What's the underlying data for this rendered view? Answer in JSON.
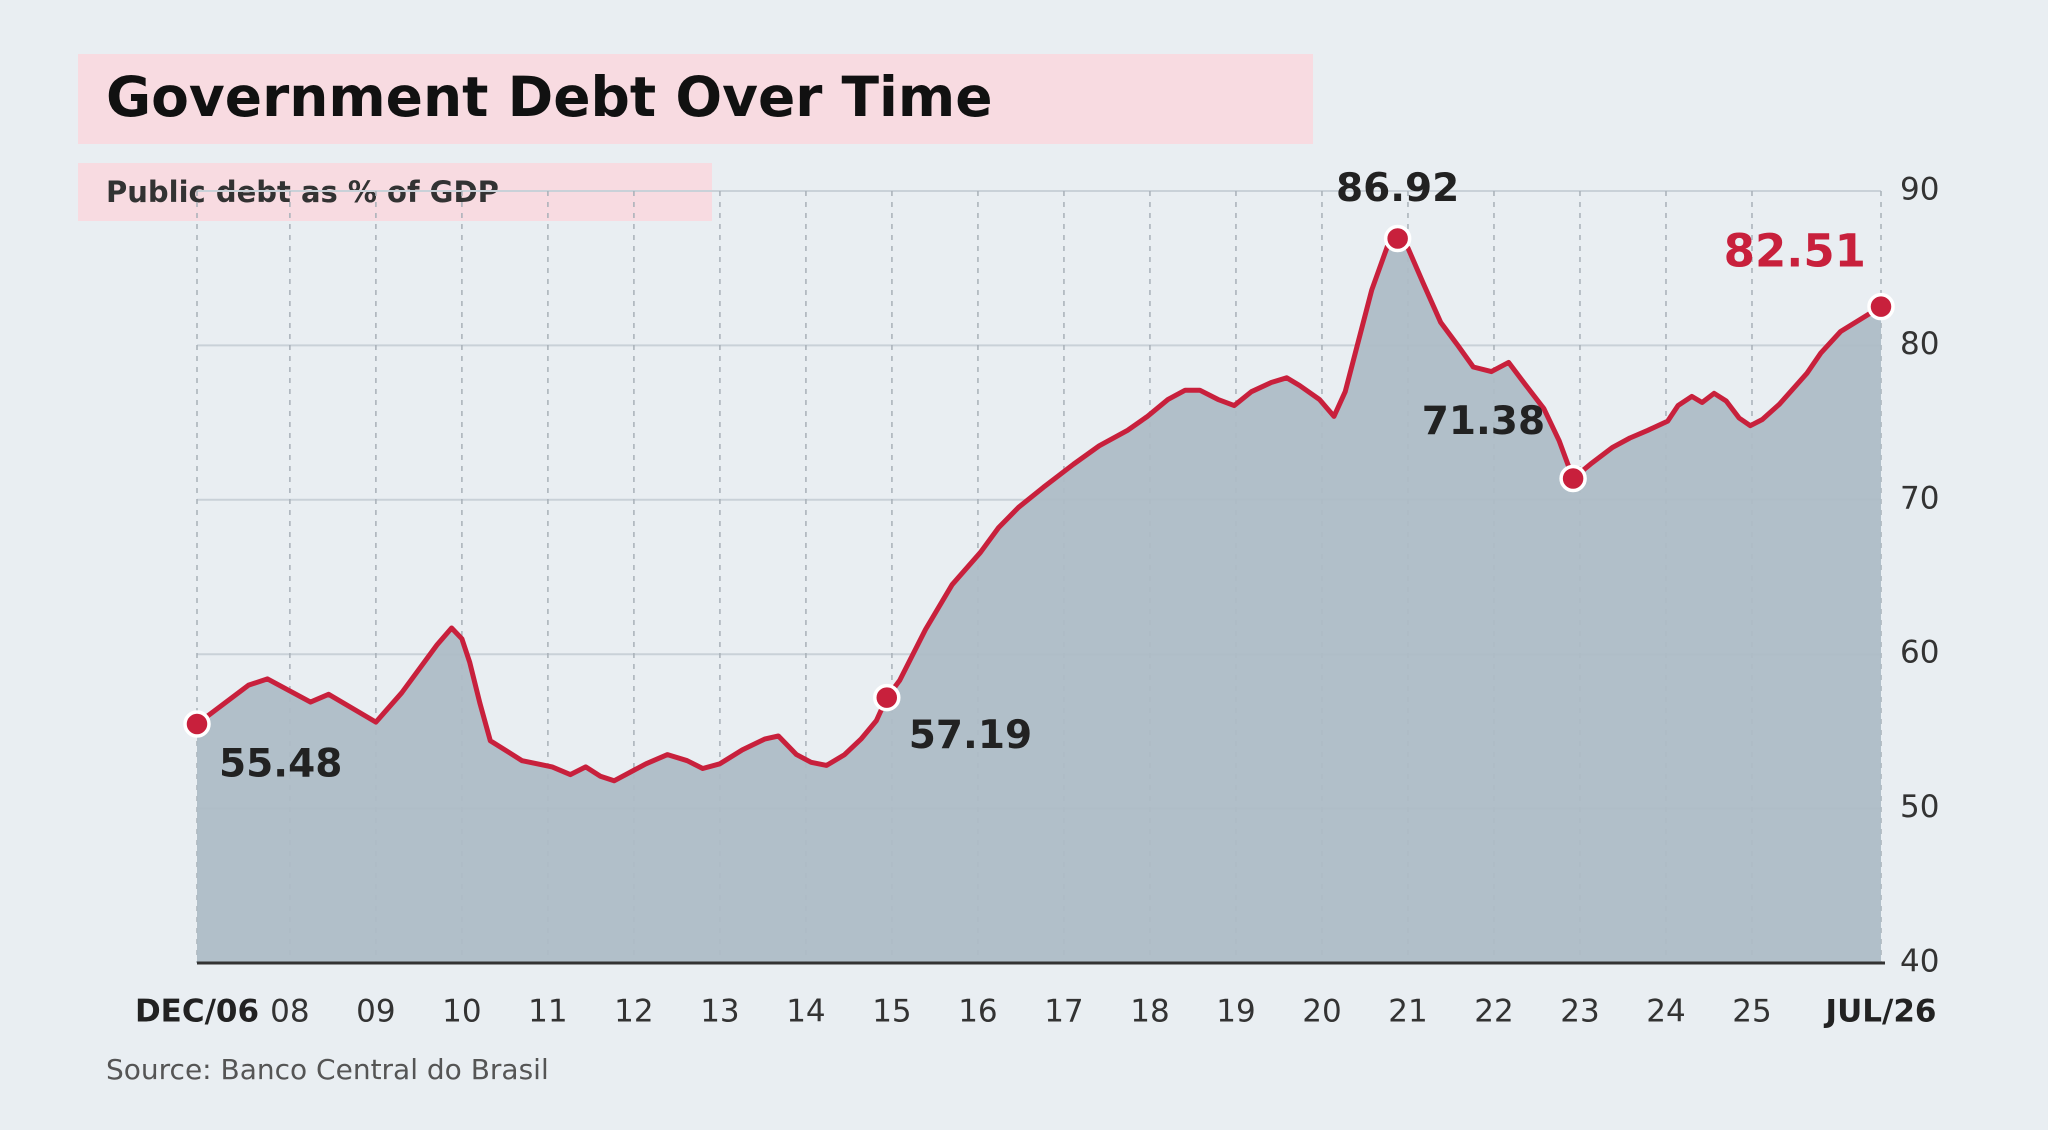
{
  "chart_data": {
    "type": "area",
    "title": "Government Debt Over Time",
    "subtitle": "Public debt as % of GDP",
    "source": "Source: Banco Central do Brasil",
    "color": "#c8203c",
    "area_color": "#aebcc6",
    "highlight_color": "#c8203c",
    "xlim": [
      2006.92,
      2026.5
    ],
    "ylim": [
      40,
      90
    ],
    "xticks": [
      {
        "value": 2006.92,
        "label": "DEC/06"
      },
      {
        "value": 2008,
        "label": "08"
      },
      {
        "value": 2009,
        "label": "09"
      },
      {
        "value": 2010,
        "label": "10"
      },
      {
        "value": 2011,
        "label": "11"
      },
      {
        "value": 2012,
        "label": "12"
      },
      {
        "value": 2013,
        "label": "13"
      },
      {
        "value": 2014,
        "label": "14"
      },
      {
        "value": 2015,
        "label": "15"
      },
      {
        "value": 2016,
        "label": "16"
      },
      {
        "value": 2017,
        "label": "17"
      },
      {
        "value": 2018,
        "label": "18"
      },
      {
        "value": 2019,
        "label": "19"
      },
      {
        "value": 2020,
        "label": "20"
      },
      {
        "value": 2021,
        "label": "21"
      },
      {
        "value": 2022,
        "label": "22"
      },
      {
        "value": 2023,
        "label": "23"
      },
      {
        "value": 2024,
        "label": "24"
      },
      {
        "value": 2025,
        "label": "25"
      },
      {
        "value": 2026.5,
        "label": "JUL/26"
      }
    ],
    "yticks": [
      40,
      50,
      60,
      70,
      80,
      90
    ],
    "grid": true,
    "x": [
      2006.92,
      2007.52,
      2007.74,
      2008.24,
      2008.45,
      2009.0,
      2009.3,
      2009.71,
      2009.88,
      2010.0,
      2010.09,
      2010.21,
      2010.33,
      2010.7,
      2011.05,
      2011.26,
      2011.44,
      2011.61,
      2011.77,
      2012.14,
      2012.39,
      2012.62,
      2012.8,
      2013.0,
      2013.26,
      2013.52,
      2013.68,
      2013.89,
      2014.06,
      2014.24,
      2014.45,
      2014.64,
      2014.82,
      2014.94,
      2015.09,
      2015.39,
      2015.7,
      2016.03,
      2016.24,
      2016.47,
      2016.76,
      2017.11,
      2017.41,
      2017.74,
      2017.97,
      2018.21,
      2018.41,
      2018.58,
      2018.79,
      2018.98,
      2019.18,
      2019.41,
      2019.59,
      2019.74,
      2019.97,
      2020.14,
      2020.27,
      2020.42,
      2020.58,
      2020.76,
      2020.88,
      2021.0,
      2021.18,
      2021.38,
      2021.58,
      2021.76,
      2021.97,
      2022.17,
      2022.36,
      2022.58,
      2022.76,
      2022.92,
      2023.12,
      2023.38,
      2023.58,
      2023.79,
      2024.02,
      2024.14,
      2024.3,
      2024.42,
      2024.56,
      2024.7,
      2024.85,
      2024.98,
      2025.12,
      2025.32,
      2025.64,
      2025.8,
      2026.03,
      2026.5
    ],
    "series": [
      {
        "values": [
          55.48,
          58.0,
          58.4,
          56.9,
          57.4,
          55.6,
          57.5,
          60.6,
          61.7,
          61.0,
          59.5,
          56.8,
          54.4,
          53.1,
          52.7,
          52.2,
          52.7,
          52.1,
          51.8,
          52.9,
          53.5,
          53.1,
          52.6,
          52.9,
          53.8,
          54.5,
          54.7,
          53.5,
          53.0,
          52.8,
          53.5,
          54.5,
          55.7,
          57.19,
          58.3,
          61.6,
          64.5,
          66.6,
          68.2,
          69.5,
          70.8,
          72.3,
          73.5,
          74.5,
          75.4,
          76.5,
          77.1,
          77.1,
          76.5,
          76.1,
          77.0,
          77.6,
          77.9,
          77.4,
          76.5,
          75.4,
          77.0,
          80.2,
          83.6,
          86.4,
          86.92,
          86.3,
          84.0,
          81.5,
          80.0,
          78.6,
          78.3,
          78.9,
          77.5,
          75.9,
          73.8,
          71.38,
          72.3,
          73.4,
          74.0,
          74.5,
          75.1,
          76.1,
          76.7,
          76.3,
          76.9,
          76.4,
          75.3,
          74.8,
          75.2,
          76.2,
          78.2,
          79.5,
          80.9,
          82.51
        ]
      }
    ],
    "markers": {
      "x": [
        2006.92,
        2014.94,
        2020.88,
        2022.92,
        2026.5
      ],
      "values": [
        55.48,
        57.19,
        86.92,
        71.38,
        82.51
      ]
    }
  }
}
